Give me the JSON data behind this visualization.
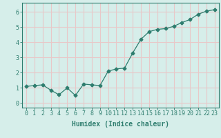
{
  "x": [
    0,
    1,
    2,
    3,
    4,
    5,
    6,
    7,
    8,
    9,
    10,
    11,
    12,
    13,
    14,
    15,
    16,
    17,
    18,
    19,
    20,
    21,
    22,
    23
  ],
  "y": [
    1.1,
    1.15,
    1.2,
    0.85,
    0.55,
    1.0,
    0.5,
    1.25,
    1.2,
    1.15,
    2.1,
    2.25,
    2.3,
    3.3,
    4.2,
    4.7,
    4.85,
    4.9,
    5.05,
    5.3,
    5.5,
    5.85,
    6.05,
    6.15
  ],
  "line_color": "#2e7d6e",
  "marker": "D",
  "marker_size": 2.5,
  "bg_color": "#d6eeea",
  "grid_color": "#e8c8c8",
  "xlabel": "Humidex (Indice chaleur)",
  "xlabel_fontsize": 7,
  "tick_fontsize": 6,
  "xlim": [
    -0.5,
    23.5
  ],
  "ylim": [
    -0.3,
    6.6
  ],
  "yticks": [
    0,
    1,
    2,
    3,
    4,
    5,
    6
  ],
  "xticks": [
    0,
    1,
    2,
    3,
    4,
    5,
    6,
    7,
    8,
    9,
    10,
    11,
    12,
    13,
    14,
    15,
    16,
    17,
    18,
    19,
    20,
    21,
    22,
    23
  ]
}
